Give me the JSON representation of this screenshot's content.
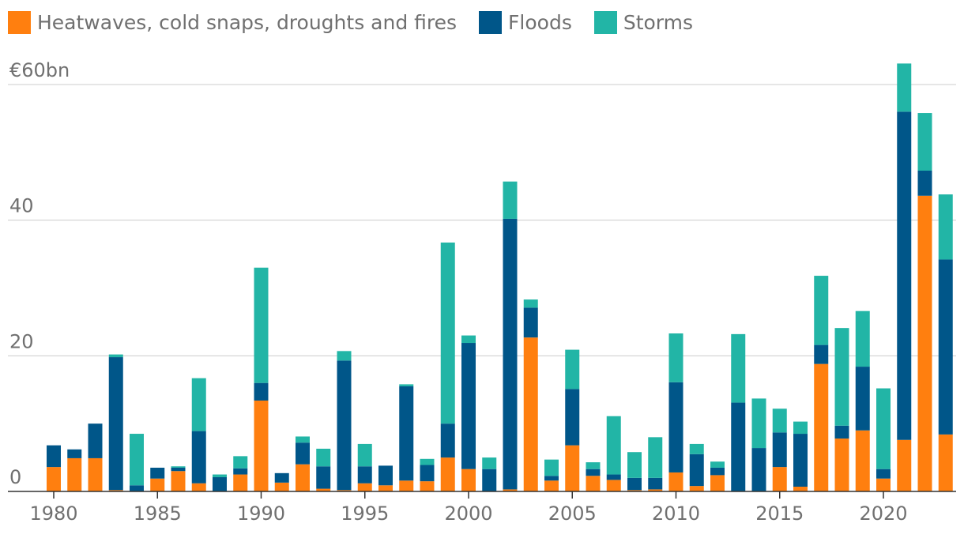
{
  "chart_data": {
    "type": "bar",
    "stacked": true,
    "title": "",
    "xlabel": "",
    "ylabel": "",
    "y_unit_label": "€60bn",
    "ylim": [
      0,
      60
    ],
    "yticks": [
      0,
      20,
      40,
      60
    ],
    "ytick_labels": [
      "0",
      "20",
      "40",
      "€60bn"
    ],
    "xticks": [
      1980,
      1985,
      1990,
      1995,
      2000,
      2005,
      2010,
      2015,
      2020
    ],
    "legend_position": "top-left",
    "grid": true,
    "categories": [
      1980,
      1981,
      1982,
      1983,
      1984,
      1985,
      1986,
      1987,
      1988,
      1989,
      1990,
      1991,
      1992,
      1993,
      1994,
      1995,
      1996,
      1997,
      1998,
      1999,
      2000,
      2001,
      2002,
      2003,
      2004,
      2005,
      2006,
      2007,
      2008,
      2009,
      2010,
      2011,
      2012,
      2013,
      2014,
      2015,
      2016,
      2017,
      2018,
      2019,
      2020,
      2021,
      2022,
      2023
    ],
    "series": [
      {
        "name": "Heatwaves, cold snaps, droughts and fires",
        "color": "#ff7f0f",
        "values": [
          3.6,
          4.9,
          4.9,
          0.2,
          0.0,
          1.9,
          3.0,
          1.2,
          0.0,
          2.5,
          13.4,
          1.3,
          4.0,
          0.4,
          0.2,
          1.2,
          0.9,
          1.6,
          1.5,
          5.0,
          3.3,
          0.0,
          0.3,
          22.7,
          1.6,
          6.8,
          2.3,
          1.7,
          0.2,
          0.3,
          2.8,
          0.8,
          2.4,
          0.0,
          0.0,
          3.6,
          0.7,
          18.8,
          7.8,
          9.0,
          1.9,
          7.6,
          43.6,
          8.4
        ]
      },
      {
        "name": "Floods",
        "color": "#005689",
        "values": [
          3.2,
          1.3,
          5.1,
          19.6,
          0.9,
          1.6,
          0.5,
          7.7,
          2.1,
          0.9,
          2.6,
          1.4,
          3.2,
          3.3,
          19.1,
          2.5,
          2.9,
          13.9,
          2.4,
          5.0,
          18.6,
          3.3,
          39.9,
          4.4,
          0.7,
          8.3,
          1.0,
          0.8,
          1.8,
          1.7,
          13.3,
          4.7,
          1.1,
          13.1,
          6.4,
          5.1,
          7.8,
          2.8,
          1.9,
          9.4,
          1.4,
          48.4,
          3.7,
          25.8
        ]
      },
      {
        "name": "Storms",
        "color": "#22b5a6",
        "values": [
          0.0,
          0.0,
          0.0,
          0.4,
          7.6,
          0.0,
          0.2,
          7.8,
          0.4,
          1.8,
          17.0,
          0.0,
          0.9,
          2.6,
          1.4,
          3.3,
          0.0,
          0.3,
          0.9,
          26.7,
          1.1,
          1.7,
          5.5,
          1.2,
          2.4,
          5.8,
          1.0,
          8.6,
          3.8,
          6.0,
          7.2,
          1.5,
          0.9,
          10.1,
          7.3,
          3.5,
          1.8,
          10.2,
          14.4,
          8.2,
          11.9,
          7.1,
          8.5,
          9.6
        ]
      }
    ]
  }
}
